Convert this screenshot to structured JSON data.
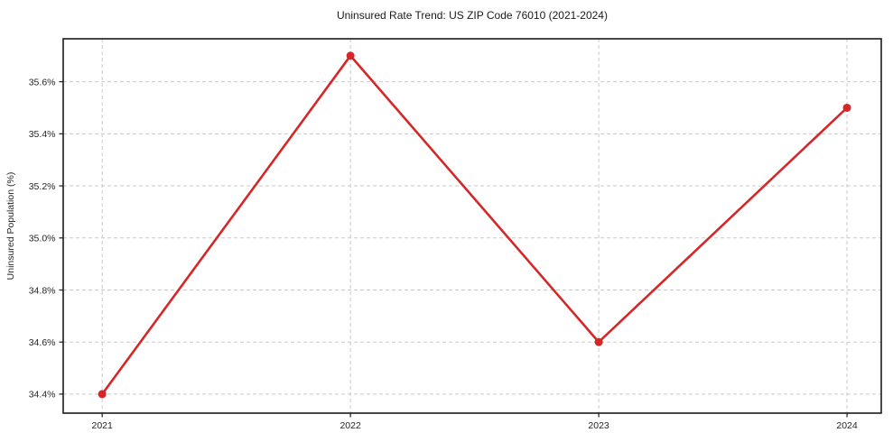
{
  "figure": {
    "background": "#ffffff"
  },
  "chart_data": {
    "type": "line",
    "title": "Uninsured Rate Trend: US ZIP Code 76010 (2021-2024)",
    "xlabel": "",
    "ylabel": "Uninsured Population (%)",
    "x": [
      2021,
      2022,
      2023,
      2024
    ],
    "values": [
      34.4,
      35.7,
      34.6,
      35.5
    ],
    "xticks": [
      2021,
      2022,
      2023,
      2024
    ],
    "xtick_labels": [
      "2021",
      "2022",
      "2023",
      "2024"
    ],
    "yticks": [
      34.4,
      34.6,
      34.8,
      35.0,
      35.2,
      35.4,
      35.6
    ],
    "ytick_labels": [
      "34.4%",
      "34.6%",
      "34.8%",
      "35.0%",
      "35.2%",
      "35.4%",
      "35.6%"
    ],
    "xlim": [
      2020.843,
      2024.138
    ],
    "ylim": [
      34.327,
      35.765
    ],
    "grid": true,
    "legend": false,
    "line_color": "#d62728",
    "marker": "circle",
    "grid_color": "#c9c9c9",
    "axis_color": "#1a1a1a",
    "text_color": "#262626"
  }
}
